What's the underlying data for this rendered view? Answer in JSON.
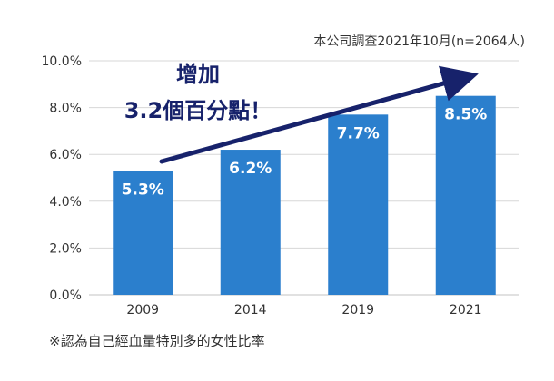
{
  "chart_data": {
    "type": "bar",
    "categories": [
      "2009",
      "2014",
      "2019",
      "2021"
    ],
    "values": [
      5.3,
      6.2,
      7.7,
      8.5
    ],
    "value_labels": [
      "5.3%",
      "6.2%",
      "7.7%",
      "8.5%"
    ],
    "ylim": [
      0,
      10
    ],
    "yticks": [
      0,
      2,
      4,
      6,
      8,
      10
    ],
    "ytick_labels": [
      "0.0%",
      "2.0%",
      "4.0%",
      "6.0%",
      "8.0%",
      "10.0%"
    ],
    "grid": true,
    "source_note": "本公司調查2021年10月(n=2064人)",
    "footnote": "※認為自己經血量特別多的女性比率",
    "annotation_line1": "增加",
    "annotation_line2": "3.2個百分點！",
    "colors": {
      "bar": "#2b7fcd",
      "arrow": "#17226b",
      "annotation_text": "#17226b",
      "value_label": "#ffffff",
      "grid": "#d7d7d7",
      "axis_text": "#333333"
    }
  }
}
